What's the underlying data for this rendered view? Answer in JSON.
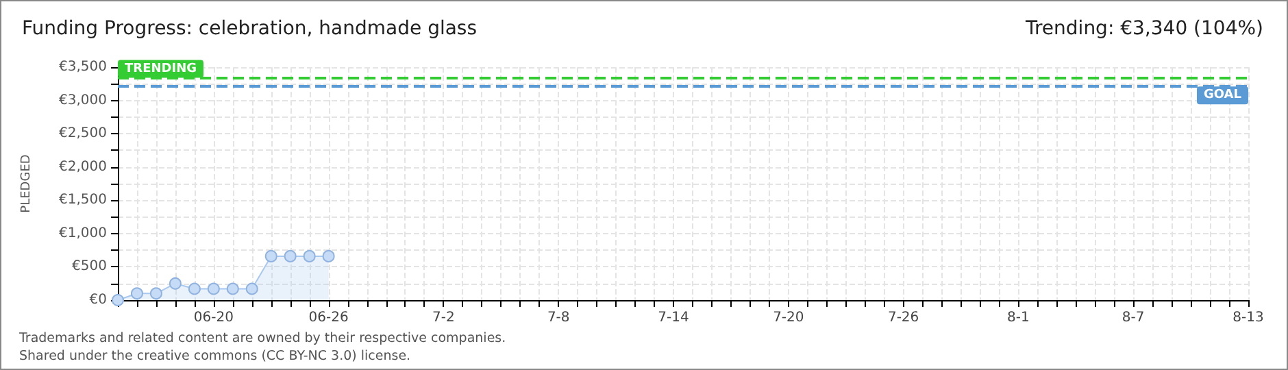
{
  "chart_data": {
    "type": "area",
    "title": "Funding Progress: celebration, handmade glass",
    "subtitle": "Trending: €3,340 (104%)",
    "ylabel": "PLEDGED",
    "annotations": [
      "Trademarks and related content are owned by their respective companies.",
      "Shared under the creative commons (CC BY-NC 3.0) license."
    ],
    "x": [
      "--06-15",
      "--06-16",
      "--06-17",
      "--06-18",
      "--06-19",
      "--06-20",
      "--06-21",
      "--06-22",
      "--06-23",
      "--06-24",
      "--06-25",
      "--06-26"
    ],
    "series": [
      {
        "color": "#a9c8ef",
        "values": [
          0,
          100,
          100,
          250,
          170,
          170,
          170,
          170,
          660,
          660,
          660,
          660
        ]
      }
    ],
    "xlim": [
      "--06-15",
      "--08-13"
    ],
    "xticks": [
      {
        "value": "--06-15",
        "label": null
      },
      {
        "value": "--06-16",
        "label": null
      },
      {
        "value": "--06-17",
        "label": null
      },
      {
        "value": "--06-18",
        "label": null
      },
      {
        "value": "--06-19",
        "label": null
      },
      {
        "value": "--06-20",
        "label": "06-20"
      },
      {
        "value": "--06-21",
        "label": null
      },
      {
        "value": "--06-22",
        "label": null
      },
      {
        "value": "--06-23",
        "label": null
      },
      {
        "value": "--06-24",
        "label": null
      },
      {
        "value": "--06-25",
        "label": null
      },
      {
        "value": "--06-26",
        "label": "06-26"
      },
      {
        "value": "--06-27",
        "label": null
      },
      {
        "value": "--06-28",
        "label": null
      },
      {
        "value": "--06-29",
        "label": null
      },
      {
        "value": "--06-30",
        "label": null
      },
      {
        "value": "--07-01",
        "label": null
      },
      {
        "value": "--07-02",
        "label": "7-2"
      },
      {
        "value": "--07-03",
        "label": null
      },
      {
        "value": "--07-04",
        "label": null
      },
      {
        "value": "--07-05",
        "label": null
      },
      {
        "value": "--07-06",
        "label": null
      },
      {
        "value": "--07-07",
        "label": null
      },
      {
        "value": "--07-08",
        "label": "7-8"
      },
      {
        "value": "--07-09",
        "label": null
      },
      {
        "value": "--07-10",
        "label": null
      },
      {
        "value": "--07-11",
        "label": null
      },
      {
        "value": "--07-12",
        "label": null
      },
      {
        "value": "--07-13",
        "label": null
      },
      {
        "value": "--07-14",
        "label": "7-14"
      },
      {
        "value": "--07-15",
        "label": null
      },
      {
        "value": "--07-16",
        "label": null
      },
      {
        "value": "--07-17",
        "label": null
      },
      {
        "value": "--07-18",
        "label": null
      },
      {
        "value": "--07-19",
        "label": null
      },
      {
        "value": "--07-20",
        "label": "7-20"
      },
      {
        "value": "--07-21",
        "label": null
      },
      {
        "value": "--07-22",
        "label": null
      },
      {
        "value": "--07-23",
        "label": null
      },
      {
        "value": "--07-24",
        "label": null
      },
      {
        "value": "--07-25",
        "label": null
      },
      {
        "value": "--07-26",
        "label": "7-26"
      },
      {
        "value": "--07-27",
        "label": null
      },
      {
        "value": "--07-28",
        "label": null
      },
      {
        "value": "--07-29",
        "label": null
      },
      {
        "value": "--07-30",
        "label": null
      },
      {
        "value": "--07-31",
        "label": null
      },
      {
        "value": "--08-01",
        "label": "8-1"
      },
      {
        "value": "--08-02",
        "label": null
      },
      {
        "value": "--08-03",
        "label": null
      },
      {
        "value": "--08-04",
        "label": null
      },
      {
        "value": "--08-05",
        "label": null
      },
      {
        "value": "--08-06",
        "label": null
      },
      {
        "value": "--08-07",
        "label": "8-7"
      },
      {
        "value": "--08-08",
        "label": null
      },
      {
        "value": "--08-09",
        "label": null
      },
      {
        "value": "--08-10",
        "label": null
      },
      {
        "value": "--08-11",
        "label": null
      },
      {
        "value": "--08-12",
        "label": null
      },
      {
        "value": "--08-13",
        "label": "8-13"
      }
    ],
    "ylim": [
      0,
      3500
    ],
    "yticks": [
      {
        "value": 0,
        "label": "€0"
      },
      {
        "value": 250,
        "label": null
      },
      {
        "value": 500,
        "label": "€500"
      },
      {
        "value": 750,
        "label": null
      },
      {
        "value": 1000,
        "label": "€1,000"
      },
      {
        "value": 1250,
        "label": null
      },
      {
        "value": 1500,
        "label": "€1,500"
      },
      {
        "value": 1750,
        "label": null
      },
      {
        "value": 2000,
        "label": "€2,000"
      },
      {
        "value": 2250,
        "label": null
      },
      {
        "value": 2500,
        "label": "€2,500"
      },
      {
        "value": 2750,
        "label": null
      },
      {
        "value": 3000,
        "label": "€3,000"
      },
      {
        "value": 3250,
        "label": null
      },
      {
        "value": 3500,
        "label": "€3,500"
      }
    ],
    "ref_lines": [
      {
        "axis": "y",
        "value": 3340,
        "label": "TRENDING",
        "color": "#33cc33",
        "line_style": "dashed"
      },
      {
        "axis": "y",
        "value": 3210,
        "label": "GOAL",
        "color": "#5b9bd5",
        "line_style": "dashed"
      }
    ],
    "grid": true,
    "marker": "circle",
    "line_style": "solid"
  }
}
